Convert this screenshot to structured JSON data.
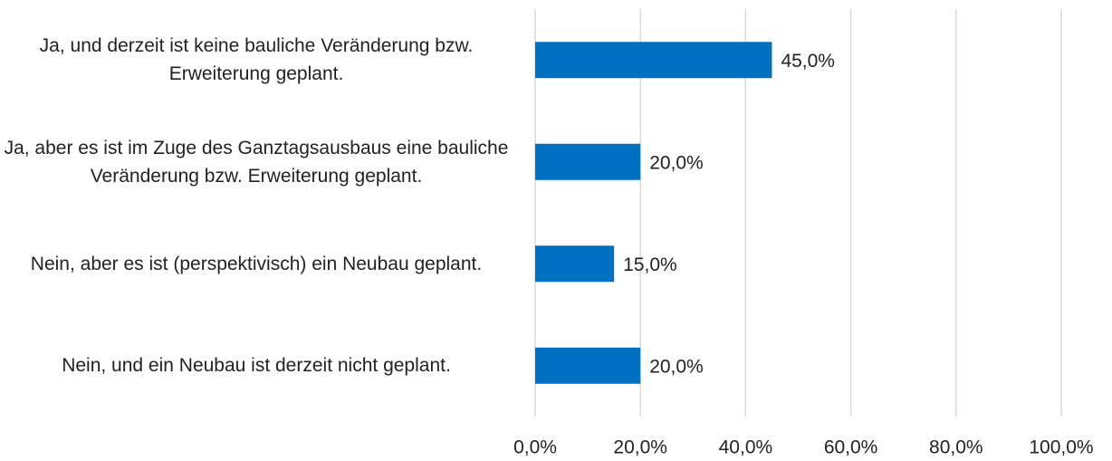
{
  "chart_data": {
    "type": "bar",
    "orientation": "horizontal",
    "categories": [
      "Ja, und derzeit ist keine bauliche Veränderung bzw. Erweiterung geplant.",
      "Ja, aber es ist im Zuge des Ganztagsausbaus eine bauliche Veränderung bzw. Erweiterung geplant.",
      "Nein, aber es ist (perspektivisch) ein Neubau geplant.",
      "Nein, und ein Neubau ist derzeit nicht geplant."
    ],
    "values": [
      45,
      20,
      15,
      20
    ],
    "value_labels": [
      "45,0%",
      "20,0%",
      "15,0%",
      "20,0%"
    ],
    "color": "#0070c0",
    "xlim": [
      0,
      100
    ],
    "xticks": [
      {
        "value": 0,
        "label": "0,0%"
      },
      {
        "value": 20,
        "label": "20,0%"
      },
      {
        "value": 40,
        "label": "40,0%"
      },
      {
        "value": 60,
        "label": "60,0%"
      },
      {
        "value": 80,
        "label": "80,0%"
      },
      {
        "value": 100,
        "label": "100,0%"
      }
    ],
    "grid": true
  }
}
